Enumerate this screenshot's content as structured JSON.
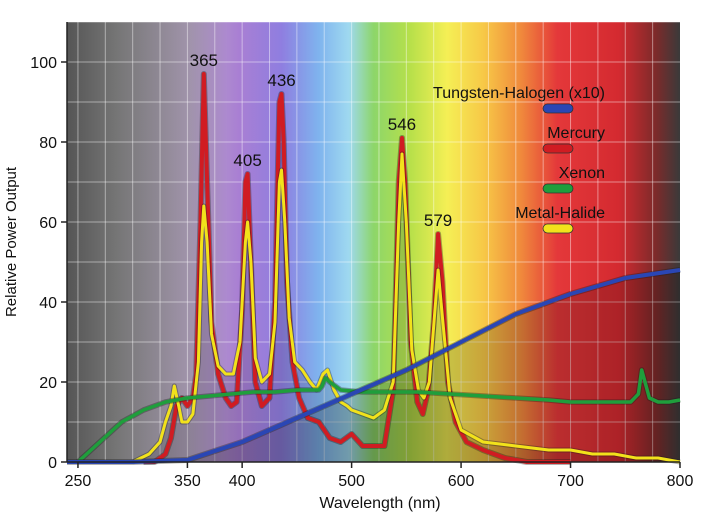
{
  "chart_data": {
    "type": "line",
    "xlabel": "Wavelength (nm)",
    "ylabel": "Relative Power Output",
    "xlim": [
      240,
      800
    ],
    "ylim": [
      0,
      110
    ],
    "x_ticks": [
      250,
      350,
      400,
      500,
      600,
      700,
      800
    ],
    "x_tick_labels": [
      "250",
      "350",
      "400",
      "500",
      "600",
      "700",
      "800"
    ],
    "y_ticks": [
      0,
      20,
      40,
      60,
      80,
      100
    ],
    "y_tick_labels": [
      "0",
      "20",
      "40",
      "60",
      "80",
      "100"
    ],
    "grid": true,
    "legend_position": "top-right",
    "colors": {
      "tungsten": "#2a46b4",
      "mercury": "#d01c22",
      "xenon": "#1f9e3c",
      "metal_halide": "#f2e21b",
      "plot_bg": "#c9c9c9"
    },
    "peak_labels": [
      {
        "text": "365",
        "x": 365,
        "y": 97
      },
      {
        "text": "405",
        "x": 405,
        "y": 72
      },
      {
        "text": "436",
        "x": 436,
        "y": 92
      },
      {
        "text": "546",
        "x": 546,
        "y": 81
      },
      {
        "text": "579",
        "x": 579,
        "y": 57
      }
    ],
    "series": [
      {
        "key": "tungsten",
        "name": "Tungsten-Halogen (x10)",
        "x": [
          240,
          300,
          350,
          400,
          450,
          500,
          550,
          600,
          650,
          700,
          750,
          800
        ],
        "y": [
          0,
          0,
          0.5,
          5,
          11,
          17,
          23,
          30,
          37,
          42,
          46,
          48
        ]
      },
      {
        "key": "mercury",
        "name": "Mercury",
        "x": [
          310,
          320,
          330,
          335,
          340,
          345,
          350,
          355,
          358,
          362,
          365,
          368,
          372,
          378,
          385,
          390,
          395,
          400,
          403,
          405,
          408,
          412,
          418,
          425,
          430,
          434,
          436,
          438,
          441,
          446,
          452,
          460,
          470,
          480,
          490,
          500,
          510,
          520,
          530,
          538,
          543,
          546,
          549,
          554,
          560,
          565,
          570,
          575,
          579,
          583,
          588,
          595,
          605,
          620,
          640,
          660,
          680,
          700
        ],
        "y": [
          0,
          0,
          2,
          6,
          14,
          16,
          14,
          16,
          22,
          60,
          97,
          70,
          35,
          22,
          16,
          14,
          15,
          38,
          70,
          72,
          50,
          20,
          14,
          16,
          40,
          90,
          92,
          80,
          45,
          25,
          16,
          11,
          10,
          6,
          5,
          7,
          4,
          4,
          4,
          18,
          70,
          81,
          70,
          30,
          15,
          12,
          18,
          35,
          57,
          45,
          20,
          10,
          5,
          3,
          1,
          0,
          0,
          0
        ]
      },
      {
        "key": "xenon",
        "name": "Xenon",
        "x": [
          250,
          270,
          290,
          310,
          330,
          350,
          370,
          390,
          410,
          430,
          450,
          470,
          473,
          476,
          480,
          490,
          510,
          530,
          560,
          590,
          620,
          650,
          680,
          700,
          720,
          740,
          755,
          762,
          765,
          768,
          772,
          780,
          790,
          800
        ],
        "y": [
          0,
          5,
          10,
          13,
          15,
          16,
          16.5,
          17,
          17.5,
          17.5,
          18,
          18,
          19,
          21,
          20,
          18,
          17.5,
          17.5,
          17.5,
          17,
          16.5,
          16,
          15.5,
          15,
          15,
          15,
          15,
          17,
          23,
          20,
          16,
          15,
          15,
          15.5
        ]
      },
      {
        "key": "metal_halide",
        "name": "Metal-Halide",
        "x": [
          300,
          315,
          325,
          330,
          335,
          338,
          342,
          345,
          350,
          355,
          360,
          363,
          365,
          368,
          372,
          378,
          385,
          392,
          398,
          403,
          405,
          408,
          412,
          418,
          425,
          430,
          434,
          436,
          439,
          443,
          448,
          455,
          462,
          468,
          474,
          478,
          484,
          490,
          496,
          500,
          510,
          520,
          530,
          538,
          543,
          546,
          550,
          555,
          561,
          566,
          571,
          575,
          579,
          583,
          590,
          600,
          620,
          650,
          680,
          700,
          720,
          740,
          760,
          780,
          800
        ],
        "y": [
          0,
          2,
          5,
          10,
          14,
          19,
          14,
          10,
          10,
          12,
          25,
          55,
          64,
          55,
          32,
          24,
          22,
          22,
          30,
          55,
          60,
          50,
          26,
          20,
          22,
          35,
          70,
          73,
          60,
          36,
          25,
          23,
          20,
          18,
          22,
          23,
          18,
          15,
          14,
          13,
          12,
          11,
          13,
          20,
          60,
          77,
          60,
          28,
          18,
          16,
          20,
          34,
          48,
          36,
          16,
          8,
          5,
          4,
          3,
          3,
          2,
          2,
          1,
          1,
          0
        ]
      }
    ]
  }
}
